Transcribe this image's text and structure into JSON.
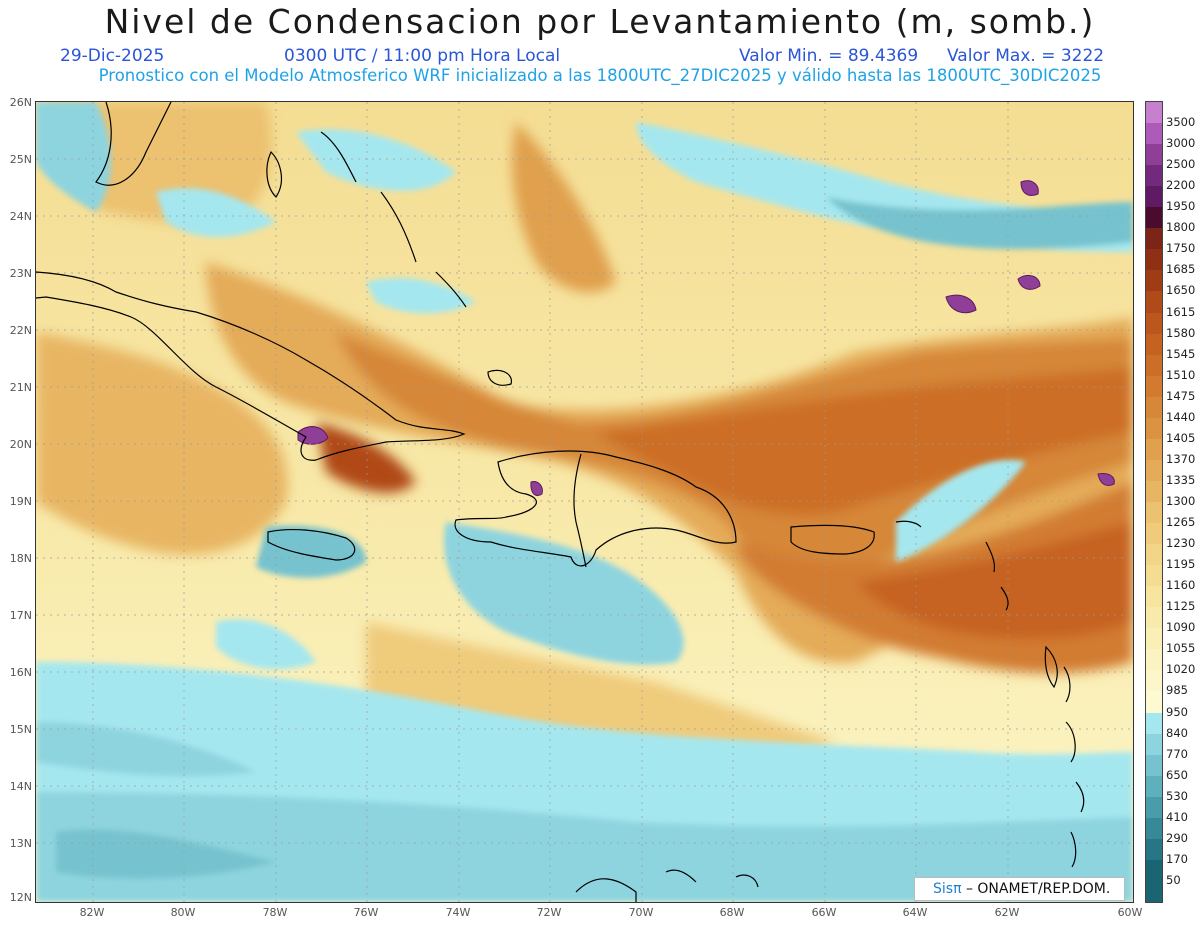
{
  "header": {
    "title": "Nivel de Condensacion por Levantamiento (m, somb.)",
    "date": "29-Dic-2025",
    "time": "0300 UTC / 11:00 pm Hora Local",
    "min": "Valor Min. = 89.4369",
    "max": "Valor Max. = 3222",
    "forecast": "Pronostico con el Modelo Atmosferico WRF inicializado a las 1800UTC_27DIC2025 y válido hasta las  1800UTC_30DIC2025"
  },
  "lat_labels": [
    "26N",
    "25N",
    "24N",
    "23N",
    "22N",
    "21N",
    "20N",
    "19N",
    "18N",
    "17N",
    "16N",
    "15N",
    "14N",
    "13N",
    "12N"
  ],
  "lon_labels": [
    "82W",
    "80W",
    "78W",
    "76W",
    "74W",
    "72W",
    "70W",
    "68W",
    "66W",
    "64W",
    "62W",
    "60W"
  ],
  "colorbar": {
    "levels": [
      "3500",
      "3000",
      "2500",
      "2200",
      "1950",
      "1800",
      "1750",
      "1685",
      "1650",
      "1615",
      "1580",
      "1545",
      "1510",
      "1475",
      "1440",
      "1405",
      "1370",
      "1335",
      "1300",
      "1265",
      "1230",
      "1195",
      "1160",
      "1125",
      "1090",
      "1055",
      "1020",
      "985",
      "950",
      "840",
      "770",
      "650",
      "530",
      "410",
      "290",
      "170",
      "50"
    ],
    "colors": [
      "#c77fd0",
      "#ad5bb8",
      "#8f3f98",
      "#742a7c",
      "#5e1a62",
      "#4a0c2c",
      "#7c2417",
      "#8e3014",
      "#a03c15",
      "#b04a18",
      "#bb561c",
      "#c66221",
      "#cc6e28",
      "#d27b30",
      "#d68739",
      "#db9343",
      "#e0a04d",
      "#e4ab58",
      "#e8b663",
      "#ecc16f",
      "#efcb7b",
      "#f2d587",
      "#f4dd93",
      "#f6e49f",
      "#f8eaab",
      "#f9efb7",
      "#fbf3c1",
      "#fcf7cb",
      "#fdf9d3",
      "#a5e7ef",
      "#8ed4df",
      "#76c2ce",
      "#5eb0bd",
      "#4a9cab",
      "#378998",
      "#287685",
      "#1b6472"
    ]
  },
  "logo": {
    "brand": "Sisπ",
    "org": " – ONAMET/REP.DOM."
  }
}
